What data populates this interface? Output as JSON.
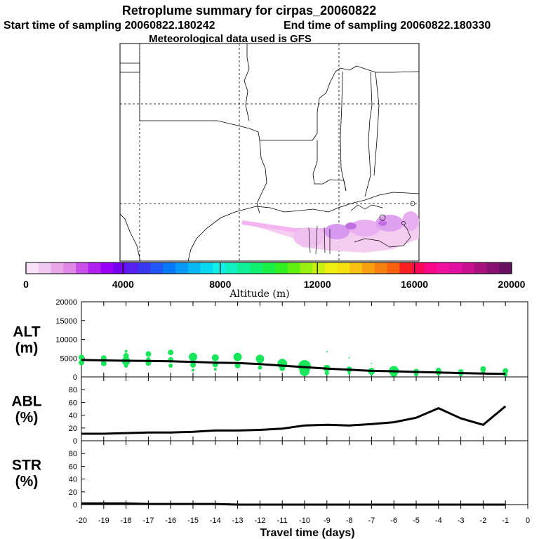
{
  "header": {
    "title": "Retroplume summary for cirpas_20060822",
    "start_label": "Start time of sampling 20060822.180242",
    "end_label": "End time of sampling 20060822.180330",
    "met_label": "Meteorological data used is GFS"
  },
  "colorbar": {
    "label": "Altitude (m)",
    "tick_labels": [
      "0",
      "4000",
      "8000",
      "12000",
      "16000",
      "20000"
    ],
    "colors": [
      "#f8e0f8",
      "#f0c8f0",
      "#e8a8e8",
      "#e088e8",
      "#c850e8",
      "#b020f0",
      "#9800f8",
      "#7800f0",
      "#5820f0",
      "#3838f0",
      "#2058f8",
      "#0878f8",
      "#0898f8",
      "#08b8f0",
      "#08d8f0",
      "#10f0e8",
      "#10f0c0",
      "#10f098",
      "#10f070",
      "#18f048",
      "#30f020",
      "#60f010",
      "#98f010",
      "#c8f010",
      "#f0f010",
      "#f8e010",
      "#f8c010",
      "#f8a010",
      "#f88010",
      "#f86010",
      "#f82020",
      "#f80858",
      "#f80888",
      "#f010a0",
      "#e010a0",
      "#c81090",
      "#a81080",
      "#881070",
      "#681060"
    ]
  },
  "chart_data": [
    {
      "type": "scatter",
      "panel": "ALT",
      "ylabel_line1": "ALT",
      "ylabel_line2": "(m)",
      "ylim": [
        0,
        20000
      ],
      "yticks": [
        0,
        5000,
        10000,
        15000,
        20000
      ],
      "line": {
        "x": [
          -20,
          -19,
          -18,
          -17,
          -16,
          -15,
          -14,
          -13,
          -12,
          -11,
          -10,
          -9,
          -8,
          -7,
          -6,
          -5,
          -4,
          -3,
          -2,
          -1
        ],
        "y": [
          4500,
          4400,
          4300,
          4250,
          4150,
          4000,
          3800,
          3700,
          3400,
          3000,
          2600,
          2200,
          1900,
          1600,
          1500,
          1300,
          1150,
          1000,
          900,
          800
        ]
      },
      "points": [
        {
          "x": -20,
          "y": 5200,
          "s": 4
        },
        {
          "x": -20,
          "y": 3800,
          "s": 4
        },
        {
          "x": -19,
          "y": 5000,
          "s": 4
        },
        {
          "x": -19,
          "y": 3600,
          "s": 4
        },
        {
          "x": -18,
          "y": 5600,
          "s": 4
        },
        {
          "x": -18,
          "y": 4200,
          "s": 6
        },
        {
          "x": -18,
          "y": 3000,
          "s": 3
        },
        {
          "x": -18,
          "y": 6800,
          "s": 2
        },
        {
          "x": -17,
          "y": 6100,
          "s": 4
        },
        {
          "x": -17,
          "y": 4700,
          "s": 3
        },
        {
          "x": -17,
          "y": 3700,
          "s": 4
        },
        {
          "x": -16,
          "y": 6500,
          "s": 4
        },
        {
          "x": -16,
          "y": 4500,
          "s": 4
        },
        {
          "x": -16,
          "y": 3000,
          "s": 3
        },
        {
          "x": -15,
          "y": 5300,
          "s": 6
        },
        {
          "x": -15,
          "y": 3200,
          "s": 4
        },
        {
          "x": -15,
          "y": 1800,
          "s": 2
        },
        {
          "x": -14,
          "y": 5100,
          "s": 5
        },
        {
          "x": -14,
          "y": 3300,
          "s": 4
        },
        {
          "x": -14,
          "y": 2000,
          "s": 2
        },
        {
          "x": -13,
          "y": 5300,
          "s": 6
        },
        {
          "x": -13,
          "y": 3000,
          "s": 4
        },
        {
          "x": -12,
          "y": 4800,
          "s": 6
        },
        {
          "x": -12,
          "y": 2500,
          "s": 3
        },
        {
          "x": -11,
          "y": 3500,
          "s": 7
        },
        {
          "x": -11,
          "y": 2300,
          "s": 4
        },
        {
          "x": -10,
          "y": 2800,
          "s": 9
        },
        {
          "x": -10,
          "y": 1500,
          "s": 7
        },
        {
          "x": -9,
          "y": 2300,
          "s": 5
        },
        {
          "x": -9,
          "y": 1000,
          "s": 3
        },
        {
          "x": -9,
          "y": 6700,
          "s": 1
        },
        {
          "x": -8,
          "y": 2000,
          "s": 4
        },
        {
          "x": -8,
          "y": 1000,
          "s": 2
        },
        {
          "x": -8,
          "y": 5100,
          "s": 1
        },
        {
          "x": -7,
          "y": 1500,
          "s": 5
        },
        {
          "x": -7,
          "y": 700,
          "s": 2
        },
        {
          "x": -7,
          "y": 3600,
          "s": 1
        },
        {
          "x": -6,
          "y": 1600,
          "s": 7
        },
        {
          "x": -6,
          "y": 900,
          "s": 5
        },
        {
          "x": -5,
          "y": 1400,
          "s": 4
        },
        {
          "x": -5,
          "y": 700,
          "s": 3
        },
        {
          "x": -4,
          "y": 1700,
          "s": 4
        },
        {
          "x": -4,
          "y": 900,
          "s": 3
        },
        {
          "x": -3,
          "y": 1300,
          "s": 4
        },
        {
          "x": -3,
          "y": 700,
          "s": 3
        },
        {
          "x": -2,
          "y": 2100,
          "s": 4
        },
        {
          "x": -2,
          "y": 1200,
          "s": 3
        },
        {
          "x": -1,
          "y": 1600,
          "s": 4
        },
        {
          "x": -1,
          "y": 600,
          "s": 3
        }
      ],
      "marker_color": "#19e65a"
    },
    {
      "type": "line",
      "panel": "ABL",
      "ylabel_line1": "ABL",
      "ylabel_line2": "(%)",
      "ylim": [
        0,
        100
      ],
      "yticks": [
        0,
        20,
        40,
        60,
        80
      ],
      "x": [
        -20,
        -19,
        -18,
        -17,
        -16,
        -15,
        -14,
        -13,
        -12,
        -11,
        -10,
        -9,
        -8,
        -7,
        -6,
        -5,
        -4,
        -3,
        -2,
        -1
      ],
      "y": [
        11,
        11,
        12,
        13,
        13,
        14,
        16,
        16,
        17,
        19,
        24,
        25,
        24,
        26,
        29,
        36,
        51,
        35,
        25,
        54
      ]
    },
    {
      "type": "line",
      "panel": "STR",
      "ylabel_line1": "STR",
      "ylabel_line2": "(%)",
      "ylim": [
        0,
        100
      ],
      "yticks": [
        0,
        20,
        40,
        60,
        80
      ],
      "x": [
        -20,
        -19,
        -18,
        -17,
        -16,
        -15,
        -14,
        -13,
        -12,
        -11,
        -10,
        -9,
        -8,
        -7,
        -6,
        -5,
        -4,
        -3,
        -2,
        -1
      ],
      "y": [
        2,
        2,
        2,
        1,
        1,
        1,
        1,
        0,
        0,
        0,
        0,
        0,
        0,
        0,
        0,
        0,
        0,
        0,
        0,
        0
      ]
    }
  ],
  "xaxis": {
    "label": "Travel time (days)",
    "xlim": [
      -20,
      0
    ],
    "tick_labels": [
      "-20",
      "-19",
      "-18",
      "-17",
      "-16",
      "-15",
      "-14",
      "-13",
      "-12",
      "-11",
      "-10",
      "-9",
      "-8",
      "-7",
      "-6",
      "-5",
      "-4",
      "-3",
      "-2",
      "-1",
      "0"
    ]
  }
}
